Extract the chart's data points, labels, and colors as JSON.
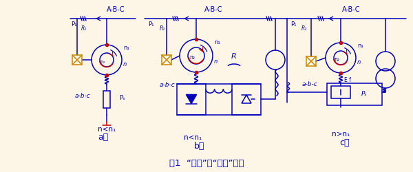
{
  "bg_color": "#fdf5e6",
  "mc": "#0000bb",
  "rc": "#cc0000",
  "oc": "#cc8800",
  "title": "图1  “单馈”与“双馈”电机",
  "label_A": "A-B-C",
  "label_abc": "a-b-c",
  "sub_a": "a）",
  "sub_b": "b）",
  "sub_c": "c）",
  "n_lt_n1": "n<n₁",
  "n_gt_n1": "n>n₁",
  "n1": "n₁",
  "n": "n",
  "R": "R",
  "Ps": "Pₛ",
  "Ef": "E f",
  "P1": "P₁",
  "R1": "R₁"
}
